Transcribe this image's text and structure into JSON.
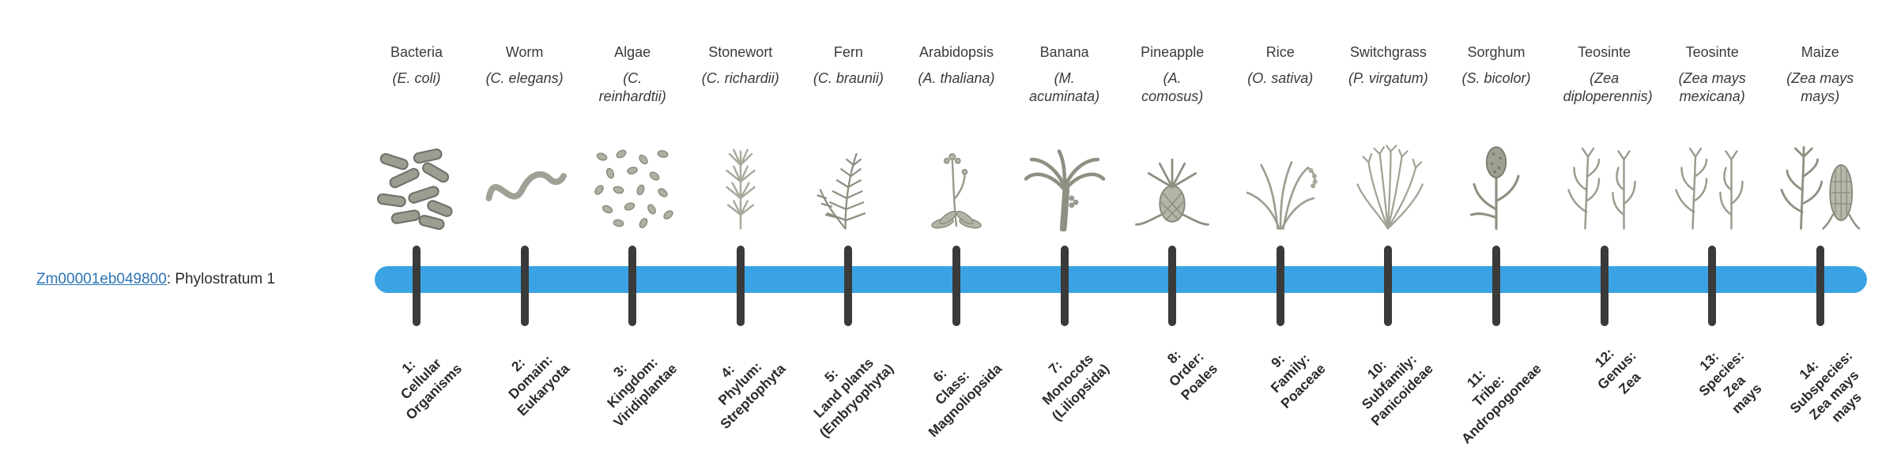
{
  "gene": {
    "id": "Zm00001eb049800",
    "suffix": ": Phylostratum 1"
  },
  "colors": {
    "bar": "#3ba3e3",
    "tick": "#3a3a3a",
    "link": "#2e74b5"
  },
  "taxa": [
    {
      "name": "Bacteria",
      "sci": "(E. coli)",
      "icon": "bacteria-icon",
      "stratum": "1:\nCellular\nOrganisms"
    },
    {
      "name": "Worm",
      "sci": "(C. elegans)",
      "icon": "worm-icon",
      "stratum": "2:\nDomain:\nEukaryota"
    },
    {
      "name": "Algae",
      "sci": "(C. reinhardtii)",
      "icon": "algae-icon",
      "stratum": "3:\nKingdom:\nViridiplantae"
    },
    {
      "name": "Stonewort",
      "sci": "(C. richardii)",
      "icon": "stonewort-icon",
      "stratum": "4:\nPhylum:\nStreptophyta"
    },
    {
      "name": "Fern",
      "sci": "(C. braunii)",
      "icon": "fern-icon",
      "stratum": "5:\nLand plants\n(Embryophyta)"
    },
    {
      "name": "Arabidopsis",
      "sci": "(A. thaliana)",
      "icon": "arabidopsis-icon",
      "stratum": "6:\nClass:\nMagnoliopsida"
    },
    {
      "name": "Banana",
      "sci": "(M. acuminata)",
      "icon": "banana-icon",
      "stratum": "7:\nMonocots\n(Liliopsida)"
    },
    {
      "name": "Pineapple",
      "sci": "(A. comosus)",
      "icon": "pineapple-icon",
      "stratum": "8:\nOrder:\nPoales"
    },
    {
      "name": "Rice",
      "sci": "(O. sativa)",
      "icon": "rice-icon",
      "stratum": "9:\nFamily:\nPoaceae"
    },
    {
      "name": "Switchgrass",
      "sci": "(P. virgatum)",
      "icon": "switchgrass-icon",
      "stratum": "10:\nSubfamily:\nPanicoideae"
    },
    {
      "name": "Sorghum",
      "sci": "(S. bicolor)",
      "icon": "sorghum-icon",
      "stratum": "11:\nTribe:\nAndropogoneae"
    },
    {
      "name": "Teosinte",
      "sci": "(Zea diploperennis)",
      "icon": "teosinte-icon",
      "stratum": "12:\nGenus:\nZea"
    },
    {
      "name": "Teosinte",
      "sci": "(Zea mays mexicana)",
      "icon": "teosinte-icon",
      "stratum": "13:\nSpecies:\nZea\nmays"
    },
    {
      "name": "Maize",
      "sci": "(Zea mays mays)",
      "icon": "maize-icon",
      "stratum": "14:\nSubspecies:\nZea mays\nmays"
    }
  ]
}
